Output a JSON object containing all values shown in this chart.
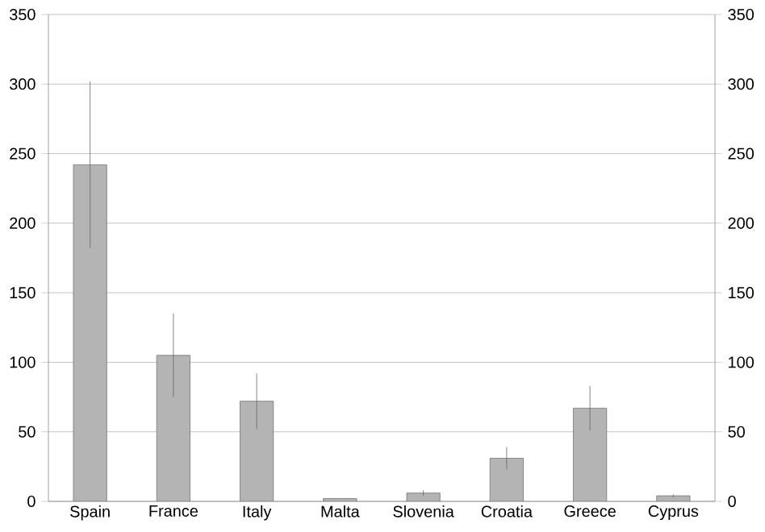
{
  "chart_data": {
    "type": "bar",
    "categories": [
      "Spain",
      "France",
      "Italy",
      "Malta",
      "Slovenia",
      "Croatia",
      "Greece",
      "Cyprus"
    ],
    "values": [
      242,
      105,
      72,
      2,
      6,
      31,
      67,
      4
    ],
    "errors": [
      60,
      30,
      20,
      null,
      2,
      8,
      16,
      1
    ],
    "color": "#b4b4b4",
    "ylim": [
      0,
      350
    ],
    "yticks": [
      0,
      50,
      100,
      150,
      200,
      250,
      300,
      350
    ],
    "y2lim": [
      0,
      350
    ],
    "y2ticks": [
      0,
      50,
      100,
      150,
      200,
      250,
      300,
      350
    ],
    "grid": "y"
  }
}
